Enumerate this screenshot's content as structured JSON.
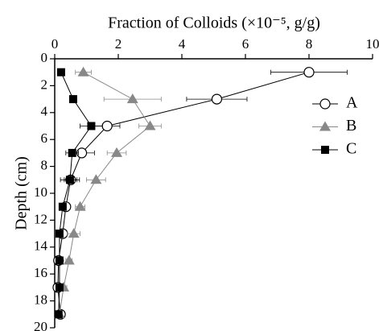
{
  "chart_data": {
    "type": "line",
    "xlabel": "Fraction of Colloids (×10⁻⁵, g/g)",
    "ylabel": "Depth (cm)",
    "xlim": [
      0,
      10
    ],
    "xticks": [
      0,
      2,
      4,
      6,
      8,
      10
    ],
    "ylim": [
      0,
      20
    ],
    "yticks": [
      0,
      2,
      4,
      6,
      8,
      10,
      12,
      14,
      16,
      18,
      20
    ],
    "y_inverted": true,
    "depths": [
      1,
      3,
      5,
      7,
      9,
      11,
      13,
      15,
      17,
      19
    ],
    "legend": "right",
    "series": [
      {
        "name": "A",
        "color": "#000000",
        "marker": "circle",
        "values": [
          8.0,
          5.1,
          1.65,
          0.85,
          0.5,
          0.35,
          0.25,
          0.12,
          0.1,
          0.18
        ],
        "errors": [
          1.2,
          0.95,
          0.4,
          0.4,
          0.2,
          0.1,
          0.1,
          0.05,
          0.05,
          0.05
        ]
      },
      {
        "name": "B",
        "color": "#888888",
        "marker": "triangle",
        "values": [
          0.9,
          2.45,
          3.0,
          1.95,
          1.3,
          0.8,
          0.6,
          0.45,
          0.28,
          0.15
        ],
        "errors": [
          0.25,
          0.9,
          0.35,
          0.3,
          0.3,
          0.15,
          0.2,
          0.1,
          0.1,
          0.05
        ]
      },
      {
        "name": "C",
        "color": "#000000",
        "marker": "square",
        "values": [
          0.2,
          0.58,
          1.15,
          0.55,
          0.48,
          0.25,
          0.15,
          0.15,
          0.15,
          0.12
        ],
        "errors": [
          0.1,
          0.1,
          0.35,
          0.2,
          0.3,
          0.1,
          0.05,
          0.05,
          0.05,
          0.05
        ]
      }
    ]
  }
}
